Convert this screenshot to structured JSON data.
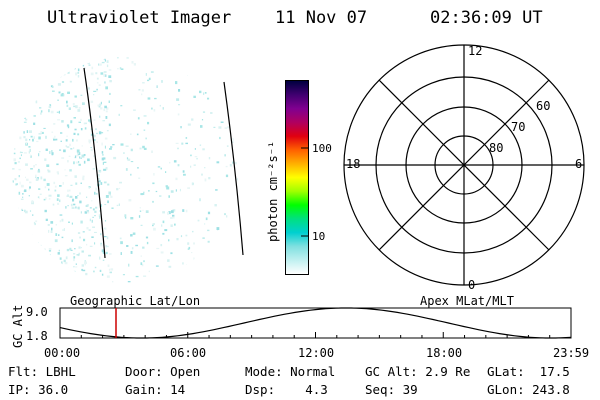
{
  "header": {
    "title": "Ultraviolet Imager",
    "date": "11 Nov 07",
    "time": "02:36:09 UT"
  },
  "colorbar": {
    "label": "photon cm⁻²s⁻¹",
    "tick_values": [
      "100",
      "10"
    ],
    "gradient": [
      "#000040",
      "#400070",
      "#800090",
      "#b00060",
      "#e00010",
      "#ff6000",
      "#ffb000",
      "#ffff00",
      "#a0ff00",
      "#00ff00",
      "#00e080",
      "#00d0d0",
      "#80e0e0",
      "#c0f0f0",
      "#ffffff"
    ]
  },
  "polar_plot": {
    "mlt_labels": {
      "top": "12",
      "bottom": "0",
      "left": "18",
      "right": "6"
    },
    "lat_labels": [
      "60",
      "70",
      "80"
    ]
  },
  "timeline": {
    "ylabel": "GC Alt",
    "yticks": [
      "9.0",
      "1.8"
    ],
    "left_title": "Geographic Lat/Lon",
    "right_title": "Apex MLat/MLT",
    "xticks": [
      "00:00",
      "06:00",
      "12:00",
      "18:00",
      "23:59"
    ]
  },
  "info": {
    "flt": "Flt: LBHL",
    "door": "Door: Open",
    "mode": "Mode: Normal",
    "gc_alt": "GC Alt: 2.9 Re",
    "glat": "GLat:  17.5",
    "ip": "IP: 36.0",
    "gain": "Gain: 14",
    "dsp": "Dsp:    4.3",
    "seq": "Seq: 39",
    "glon": "GLon: 243.8"
  }
}
